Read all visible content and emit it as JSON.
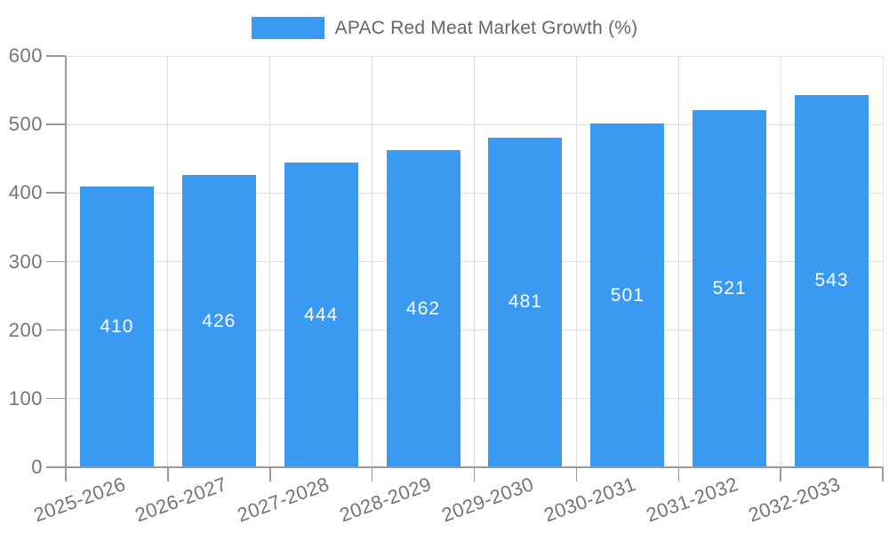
{
  "chart_data": {
    "type": "bar",
    "title": "",
    "categories": [
      "2025-2026",
      "2026-2027",
      "2027-2028",
      "2028-2029",
      "2029-2030",
      "2030-2031",
      "2031-2032",
      "2032-2033"
    ],
    "series": [
      {
        "name": "APAC Red Meat Market Growth (%)",
        "values": [
          410,
          426,
          444,
          462,
          481,
          501,
          521,
          543
        ],
        "color": "#3a99f0"
      }
    ],
    "xlabel": "",
    "ylabel": "",
    "ylim": [
      0,
      600
    ],
    "y_ticks": [
      0,
      100,
      200,
      300,
      400,
      500,
      600
    ],
    "grid": true,
    "legend_position": "top-center",
    "value_label_position": "inside-center",
    "value_label_color": "#ffffff",
    "grid_color": "#e0e0e0",
    "axis_color": "#999999",
    "tick_label_color": "#757575",
    "legend_text_color": "#666666",
    "background_color": "#ffffff",
    "x_label_rotation_deg": -20
  }
}
